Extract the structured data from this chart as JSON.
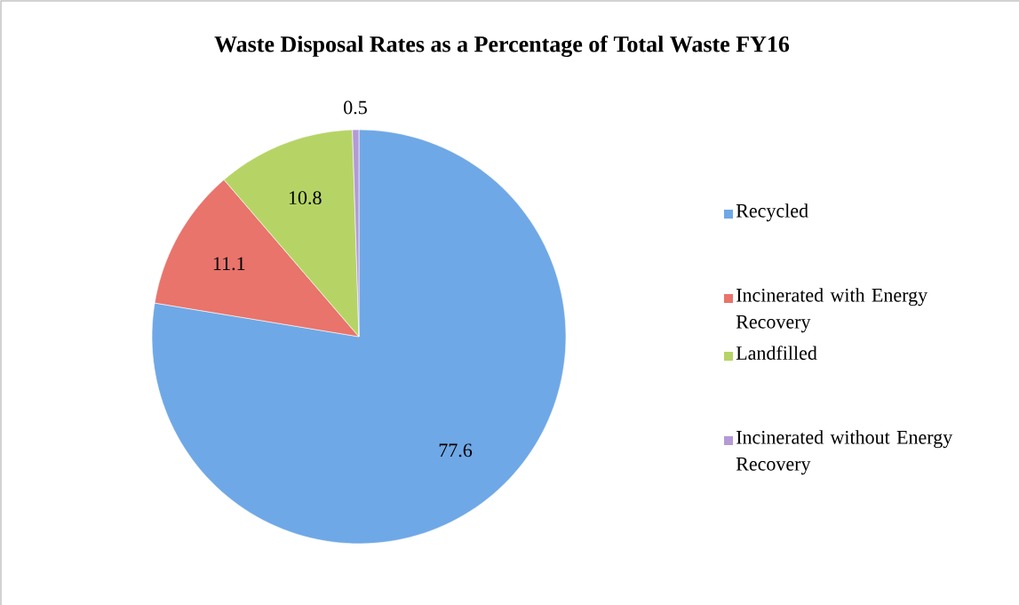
{
  "chart_data": {
    "type": "pie",
    "title": "Waste Disposal Rates as a Percentage of Total Waste FY16",
    "categories": [
      "Recycled",
      "Incinerated with Energy Recovery",
      "Landfilled",
      "Incinerated without Energy Recovery"
    ],
    "values": [
      77.6,
      11.1,
      10.8,
      0.5
    ],
    "colors": [
      "#6fa8e6",
      "#e8746c",
      "#b6d466",
      "#b49ad6"
    ],
    "data_labels": true,
    "legend": "right"
  }
}
